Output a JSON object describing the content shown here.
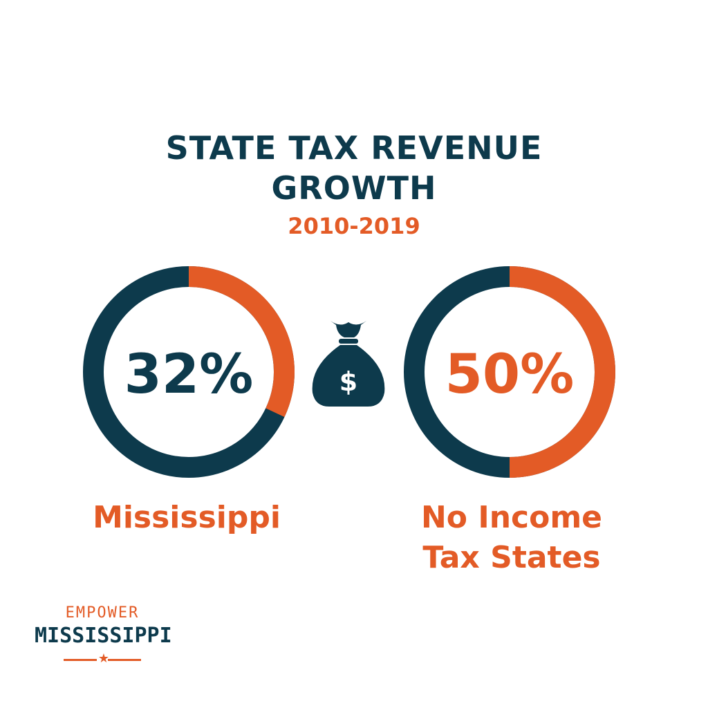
{
  "header": {
    "title_line1": "STATE TAX REVENUE",
    "title_line2": "GROWTH",
    "subtitle": "2010-2019"
  },
  "colors": {
    "navy": "#0d3a4c",
    "orange": "#e35b26"
  },
  "icon": "money-bag-icon",
  "chart_data": [
    {
      "type": "pie",
      "subtype": "donut",
      "value_label": "32%",
      "value": 32,
      "label": "Mississippi",
      "highlight_color": "#e35b26",
      "rest_color": "#0d3a4c",
      "value_text_color": "#0d3a4c"
    },
    {
      "type": "pie",
      "subtype": "donut",
      "value_label": "50%",
      "value": 50,
      "label_line1": "No Income",
      "label_line2": "Tax States",
      "highlight_color": "#e35b26",
      "rest_color": "#0d3a4c",
      "value_text_color": "#e35b26"
    }
  ],
  "logo": {
    "top": "EMPOWER",
    "main": "MISSISSIPPI"
  }
}
